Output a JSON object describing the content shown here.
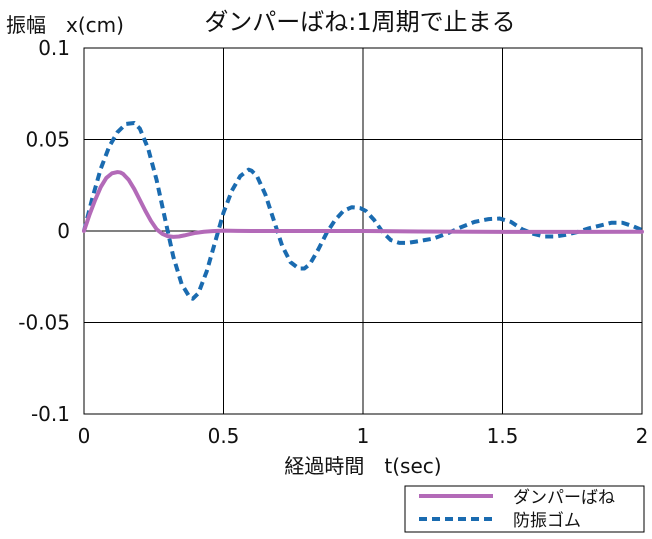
{
  "chart_data": {
    "type": "line",
    "title": "ダンパーばね:1周期で止まる",
    "ylabel": "振幅　x(cm)",
    "xlabel": "経過時間　t(sec)",
    "xlim": [
      0,
      2
    ],
    "ylim": [
      -0.1,
      0.1
    ],
    "x_ticks": [
      0,
      0.5,
      1,
      1.5,
      2
    ],
    "x_tick_labels": [
      "0",
      "0.5",
      "1",
      "1.5",
      "2"
    ],
    "y_ticks": [
      -0.1,
      -0.05,
      0,
      0.05,
      0.1
    ],
    "y_tick_labels": [
      "-0.1",
      "-0.05",
      "0",
      "0.05",
      "0.1"
    ],
    "grid": true,
    "legend_position": "below-right",
    "series": [
      {
        "name": "ダンパーばね",
        "color": "#b36ab8",
        "style": "solid",
        "x": [
          0,
          0.02,
          0.04,
          0.06,
          0.08,
          0.1,
          0.12,
          0.13,
          0.14,
          0.16,
          0.18,
          0.2,
          0.22,
          0.24,
          0.26,
          0.28,
          0.3,
          0.32,
          0.34,
          0.36,
          0.38,
          0.4,
          0.43,
          0.46,
          0.5,
          0.55,
          0.6,
          0.7,
          0.8,
          1.0,
          1.2,
          1.5,
          1.8,
          2.0
        ],
        "y": [
          0,
          0.009,
          0.017,
          0.024,
          0.029,
          0.0315,
          0.0322,
          0.032,
          0.0312,
          0.028,
          0.023,
          0.017,
          0.011,
          0.0055,
          0.001,
          -0.0015,
          -0.0028,
          -0.0032,
          -0.003,
          -0.0024,
          -0.0017,
          -0.001,
          -0.0004,
          -0.0001,
          0.0002,
          0.0001,
          0,
          0,
          0,
          0,
          -0.0003,
          -0.0005,
          -0.0005,
          -0.0004
        ]
      },
      {
        "name": "防振ゴム",
        "color": "#1a6bb0",
        "style": "dashed",
        "x": [
          0,
          0.03,
          0.06,
          0.09,
          0.12,
          0.15,
          0.18,
          0.2,
          0.23,
          0.26,
          0.29,
          0.32,
          0.35,
          0.38,
          0.39,
          0.41,
          0.44,
          0.47,
          0.5,
          0.53,
          0.56,
          0.59,
          0.6,
          0.62,
          0.65,
          0.68,
          0.71,
          0.74,
          0.77,
          0.79,
          0.81,
          0.84,
          0.87,
          0.9,
          0.93,
          0.96,
          0.99,
          1.01,
          1.04,
          1.07,
          1.1,
          1.13,
          1.16,
          1.19,
          1.22,
          1.25,
          1.3,
          1.35,
          1.4,
          1.45,
          1.49,
          1.53,
          1.57,
          1.61,
          1.65,
          1.69,
          1.73,
          1.77,
          1.81,
          1.85,
          1.89,
          1.93,
          1.97,
          2.0
        ],
        "y": [
          0,
          0.018,
          0.034,
          0.046,
          0.054,
          0.0585,
          0.059,
          0.056,
          0.045,
          0.028,
          0.007,
          -0.014,
          -0.029,
          -0.0365,
          -0.037,
          -0.034,
          -0.022,
          -0.006,
          0.01,
          0.022,
          0.03,
          0.0335,
          0.033,
          0.03,
          0.02,
          0.006,
          -0.008,
          -0.017,
          -0.0205,
          -0.0205,
          -0.018,
          -0.01,
          -0.001,
          0.006,
          0.011,
          0.013,
          0.0125,
          0.011,
          0.006,
          -0.0005,
          -0.005,
          -0.0065,
          -0.0065,
          -0.0058,
          -0.005,
          -0.0042,
          -0.0015,
          0.002,
          0.005,
          0.0065,
          0.0068,
          0.005,
          0.001,
          -0.0015,
          -0.003,
          -0.003,
          -0.002,
          -0.0005,
          0.0015,
          0.003,
          0.0045,
          0.0045,
          0.0025,
          0.0005
        ]
      }
    ]
  }
}
